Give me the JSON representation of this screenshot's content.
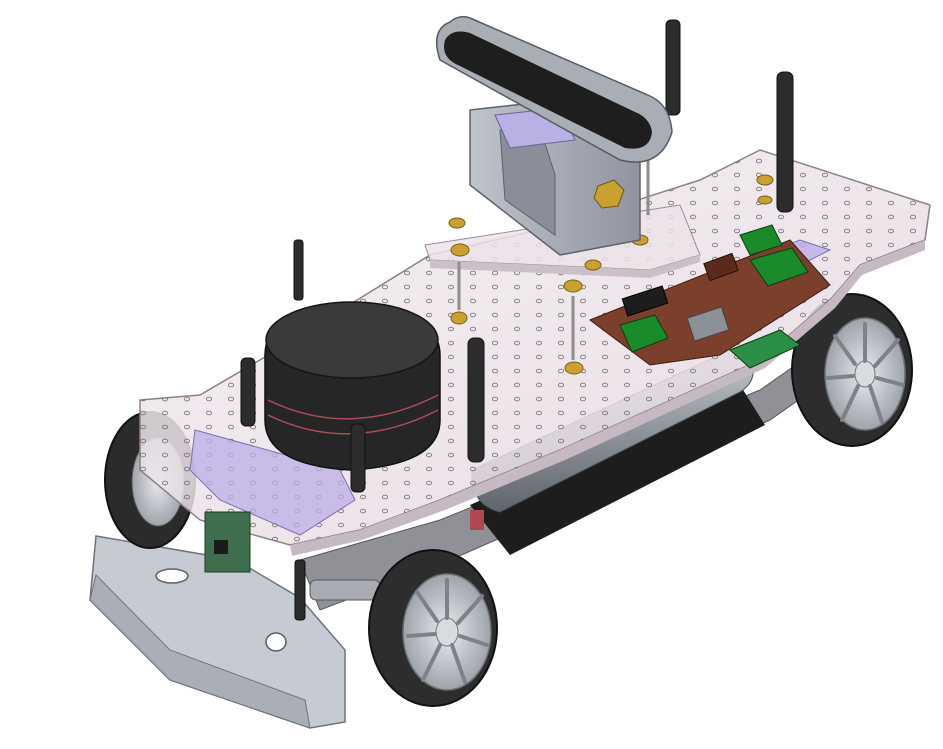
{
  "scene": {
    "subject": "rc-car-robot-chassis-cad",
    "colors": {
      "background": "#ffffff",
      "plate": "#efe6ec",
      "plate_edge": "#b7a9b2",
      "tire": "#2b2b2b",
      "rim": "#c9ccd2",
      "lidar_dark": "#303030",
      "camera_body": "#a4a8b2",
      "camera_dark": "#1e1e1e",
      "pcb_brown": "#7a3f2a",
      "pcb_green": "#1b8a2a",
      "brass": "#c9a032",
      "standoff": "#2e2e2e",
      "battery": "#9aa0a6",
      "bumper": "#c3c7cf",
      "lavender": "#b9a9e6"
    }
  }
}
